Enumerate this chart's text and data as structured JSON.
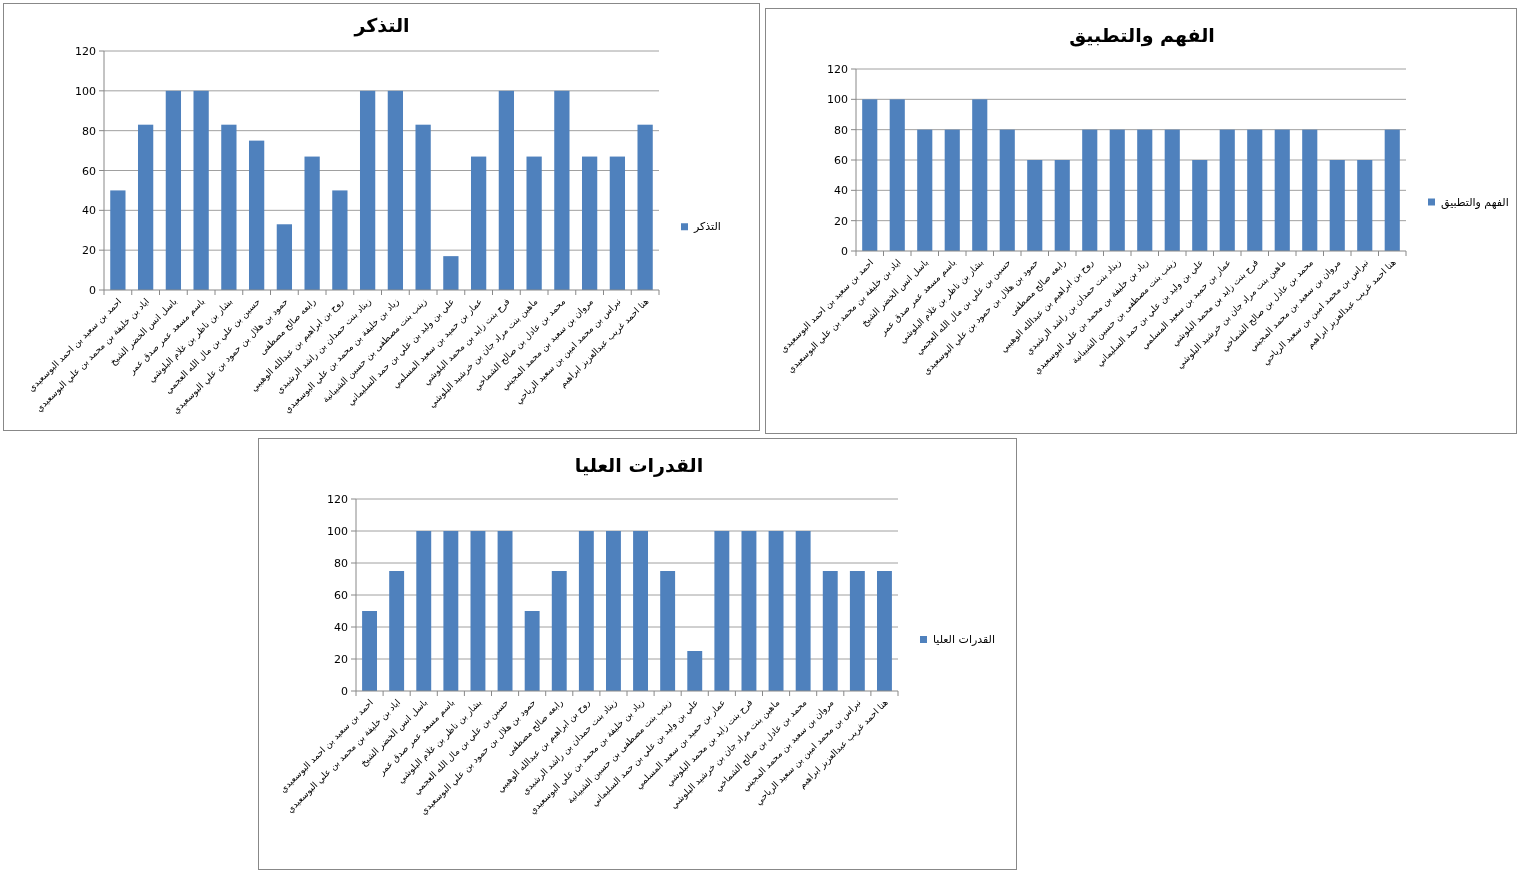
{
  "chart_data": [
    {
      "type": "bar",
      "title": "التذكر",
      "categories": [
        "احمد بن سعيد بن احمد البوسعيدي",
        "اياد بن خليفة بن محمد بن علي البوسعيدي",
        "باسل انس الخضر الشيخ",
        "باسم مسعد عمر صدق عمر",
        "بشار بن ناظر بن غلام البلوشي",
        "حسين بن علي بن مال الله العجمي",
        "حمود بن هلال بن حمود بن علي البوسعيدي",
        "رابعه صالح مصطفى",
        "روح بن ابراهيم بن عبدالله الوهيبي",
        "زيناد بنت حمدان بن راشد الرشيدي",
        "زياد بن خليفة بن محمد بن علي البوسعيدي",
        "زينب بنت مصطفى بن حسين الشيبانية",
        "علي بن وليد بن علي بن حمد السليماني",
        "عمار بن حميد بن سعيد المسلمي",
        "فرح بنت زايد بن محمد البلوشي",
        "ماهين بنت مراد جان بن خرشيد البلوشي",
        "محمد بن عادل بن صالح الشماخي",
        "مروان بن سعيد بن محمد المجيني",
        "نبراس بن محمد امين بن سعيد الرياحي",
        "هنا احمد غريب عبدالعزيز ابراهيم"
      ],
      "series": [
        {
          "name": "التذكر",
          "color": "#4f81bd",
          "values": [
            50,
            83,
            100,
            100,
            83,
            75,
            33,
            67,
            50,
            100,
            100,
            83,
            17,
            67,
            100,
            67,
            100,
            67,
            67,
            83
          ]
        }
      ],
      "ylim": [
        0,
        120
      ],
      "yticks": [
        0,
        20,
        40,
        60,
        80,
        100,
        120
      ],
      "grid": "y",
      "legend": "right"
    },
    {
      "type": "bar",
      "title": "الفهم والتطبيق",
      "categories": [
        "احمد بن سعيد بن احمد البوسعيدي",
        "اياد بن خليفة بن محمد بن علي البوسعيدي",
        "باسل انس الخضر الشيخ",
        "باسم مسعد عمر صدق عمر",
        "بشار بن ناظر بن غلام البلوشي",
        "حسين بن علي بن مال الله العجمي",
        "حمود بن هلال بن حمود بن علي البوسعيدي",
        "رابعه صالح مصطفى",
        "روح بن ابراهيم بن عبدالله الوهيبي",
        "زيناد بنت حمدان بن راشد الرشيدي",
        "زياد بن خليفة بن محمد بن علي البوسعيدي",
        "زينب بنت مصطفى بن حسين الشيبانية",
        "علي بن وليد بن علي بن حمد السليماني",
        "عمار بن حميد بن سعيد المسلمي",
        "فرح بنت زايد بن محمد البلوشي",
        "ماهين بنت مراد جان بن خرشيد البلوشي",
        "محمد بن عادل بن صالح الشماخي",
        "مروان بن سعيد بن محمد المجيني",
        "نبراس بن محمد امين بن سعيد الرياحي",
        "هنا احمد غريب عبدالعزيز ابراهيم"
      ],
      "series": [
        {
          "name": "الفهم والتطبيق",
          "color": "#4f81bd",
          "values": [
            100,
            100,
            80,
            80,
            100,
            80,
            60,
            60,
            80,
            80,
            80,
            80,
            60,
            80,
            80,
            80,
            80,
            60,
            60,
            80
          ]
        }
      ],
      "ylim": [
        0,
        120
      ],
      "yticks": [
        0,
        20,
        40,
        60,
        80,
        100,
        120
      ],
      "grid": "y",
      "legend": "right"
    },
    {
      "type": "bar",
      "title": "القدرات العليا",
      "categories": [
        "احمد بن سعيد بن احمد البوسعيدي",
        "اياد بن خليفة بن محمد بن علي البوسعيدي",
        "باسل انس الخضر الشيخ",
        "باسم مسعد عمر صدق عمر",
        "بشار بن ناظر بن غلام البلوشي",
        "حسين بن علي بن مال الله العجمي",
        "حمود بن هلال بن حمود بن علي البوسعيدي",
        "رابعه صالح مصطفى",
        "روح بن ابراهيم بن عبدالله الوهيبي",
        "زيناد بنت حمدان بن راشد الرشيدي",
        "زياد بن خليفة بن محمد بن علي البوسعيدي",
        "زينب بنت مصطفى بن حسين الشيبانية",
        "علي بن وليد بن علي بن حمد السليماني",
        "عمار بن حميد بن سعيد المسلمي",
        "فرح بنت زايد بن محمد البلوشي",
        "ماهين بنت مراد جان بن خرشيد البلوشي",
        "محمد بن عادل بن صالح الشماخي",
        "مروان بن سعيد بن محمد المجيني",
        "نبراس بن محمد امين بن سعيد الرياحي",
        "هنا احمد غريب عبدالعزيز ابراهيم"
      ],
      "series": [
        {
          "name": "القدرات العليا",
          "color": "#4f81bd",
          "values": [
            50,
            75,
            100,
            100,
            100,
            100,
            50,
            75,
            100,
            100,
            100,
            75,
            25,
            100,
            100,
            100,
            100,
            75,
            75,
            75
          ]
        }
      ],
      "ylim": [
        0,
        120
      ],
      "yticks": [
        0,
        20,
        40,
        60,
        80,
        100,
        120
      ],
      "grid": "y",
      "legend": "right"
    }
  ]
}
